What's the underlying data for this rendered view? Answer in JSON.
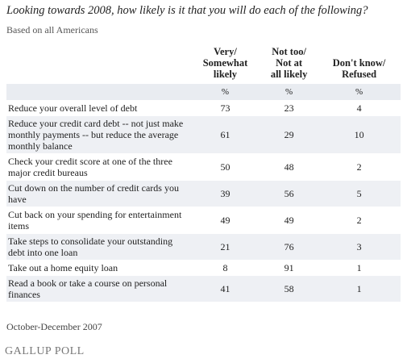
{
  "header": {
    "title": "Looking towards 2008, how likely is it that you will do each of the following?",
    "subtitle": "Based on all Americans"
  },
  "table": {
    "columns": [
      [
        "Very/",
        "Somewhat",
        "likely"
      ],
      [
        "Not too/",
        "Not at",
        "all likely"
      ],
      [
        "Don't know/",
        "Refused"
      ]
    ],
    "units": [
      "%",
      "%",
      "%"
    ],
    "rows": [
      [
        "Reduce your overall level of debt",
        73,
        23,
        4
      ],
      [
        "Reduce your credit card debt -- not just make monthly payments -- but reduce the average monthly balance",
        61,
        29,
        10
      ],
      [
        "Check your credit score at one of the three major credit bureaus",
        50,
        48,
        2
      ],
      [
        "Cut down on the number of credit cards you have",
        39,
        56,
        5
      ],
      [
        "Cut back on your spending for entertainment items",
        49,
        49,
        2
      ],
      [
        "Take steps to consolidate your outstanding debt into one loan",
        21,
        76,
        3
      ],
      [
        "Take out a home equity loan",
        8,
        91,
        1
      ],
      [
        "Read a book or take a course on personal finances",
        41,
        58,
        1
      ]
    ]
  },
  "footer": {
    "date": "October-December 2007",
    "source": "GALLUP POLL"
  }
}
